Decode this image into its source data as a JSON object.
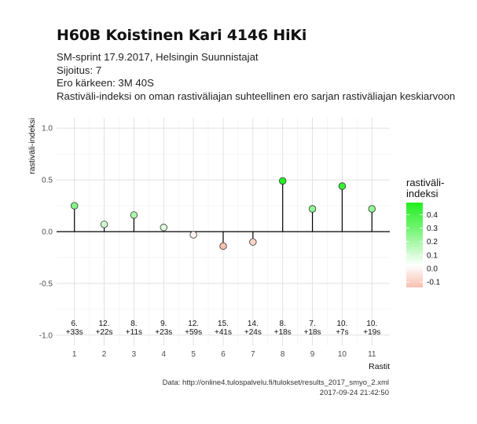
{
  "header": {
    "title": "H60B Koistinen Kari 4146 HiKi",
    "subtitle_lines": [
      "SM-sprint 17.9.2017, Helsingin Suunnistajat",
      "Sijoitus: 7",
      "Ero kärkeen: 3M 40S",
      "Rastiväli-indeksi on oman rastiväliajan suhteellinen ero sarjan rastiväliajan keskiarvoon"
    ]
  },
  "caption": {
    "source": "Data: http://online4.tulospalvelu.fi/tulokset/results_2017_smyo_2.xml",
    "timestamp": "2017-09-24 21:42:50"
  },
  "chart_data": {
    "type": "scatter",
    "style": "lollipop",
    "xlabel": "Rastit",
    "ylabel": "rastiväli-indeksi",
    "x": [
      1,
      2,
      3,
      4,
      5,
      6,
      7,
      8,
      9,
      10,
      11
    ],
    "values": [
      0.25,
      0.07,
      0.16,
      0.04,
      -0.03,
      -0.14,
      -0.1,
      0.49,
      0.22,
      0.44,
      0.22
    ],
    "annotations": [
      [
        "6.",
        "+33s"
      ],
      [
        "12.",
        "+22s"
      ],
      [
        "8.",
        "+11s"
      ],
      [
        "9.",
        "+23s"
      ],
      [
        "12.",
        "+59s"
      ],
      [
        "15.",
        "+41s"
      ],
      [
        "14.",
        "+24s"
      ],
      [
        "8.",
        "+18s"
      ],
      [
        "7.",
        "+18s"
      ],
      [
        "10.",
        "+7s"
      ],
      [
        "10.",
        "+19s"
      ]
    ],
    "ylim": [
      -1.0,
      1.0
    ],
    "yticks": [
      1.0,
      0.5,
      0.0,
      -0.5,
      -1.0
    ],
    "ytick_labels": [
      "1.0",
      "0.5",
      "0.0",
      "-0.5",
      "-1.0"
    ],
    "xticks": [
      "1",
      "2",
      "3",
      "4",
      "5",
      "6",
      "7",
      "8",
      "9",
      "10",
      "11"
    ],
    "grid": true,
    "legend": {
      "title_lines": [
        "rastiväli-",
        "indeksi"
      ],
      "labels": [
        "0.4",
        "0.3",
        "0.2",
        "0.1",
        "0.0",
        "-0.1"
      ],
      "positive_color": "#22ee22",
      "negative_color": "#f8c0b0",
      "placement": "right"
    }
  }
}
